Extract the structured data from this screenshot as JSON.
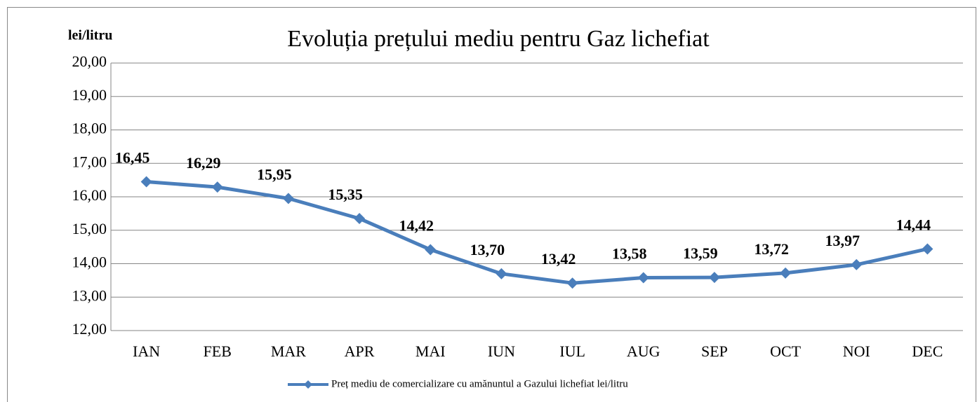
{
  "chart_data": {
    "type": "line",
    "title": "Evoluția prețului mediu pentru Gaz lichefiat",
    "y_label": "lei/litru",
    "categories": [
      "IAN",
      "FEB",
      "MAR",
      "APR",
      "MAI",
      "IUN",
      "IUL",
      "AUG",
      "SEP",
      "OCT",
      "NOI",
      "DEC"
    ],
    "series": [
      {
        "name": "Preț mediu de comercializare cu amănuntul a Gazului lichefiat lei/litru",
        "color": "#4a7ebb",
        "values": [
          16.45,
          16.29,
          15.95,
          15.35,
          14.42,
          13.7,
          13.42,
          13.58,
          13.59,
          13.72,
          13.97,
          14.44
        ],
        "value_labels": [
          "16,45",
          "16,29",
          "15,95",
          "15,35",
          "14,42",
          "13,70",
          "13,42",
          "13,58",
          "13,59",
          "13,72",
          "13,97",
          "14,44"
        ]
      }
    ],
    "ylim": [
      12,
      20
    ],
    "yticks": [
      {
        "value": 12,
        "label": "12,00"
      },
      {
        "value": 13,
        "label": "13,00"
      },
      {
        "value": 14,
        "label": "14,00"
      },
      {
        "value": 15,
        "label": "15,00"
      },
      {
        "value": 16,
        "label": "16,00"
      },
      {
        "value": 17,
        "label": "17,00"
      },
      {
        "value": 18,
        "label": "18,00"
      },
      {
        "value": 19,
        "label": "19,00"
      },
      {
        "value": 20,
        "label": "20,00"
      }
    ],
    "grid": true,
    "legend": "bottom"
  }
}
